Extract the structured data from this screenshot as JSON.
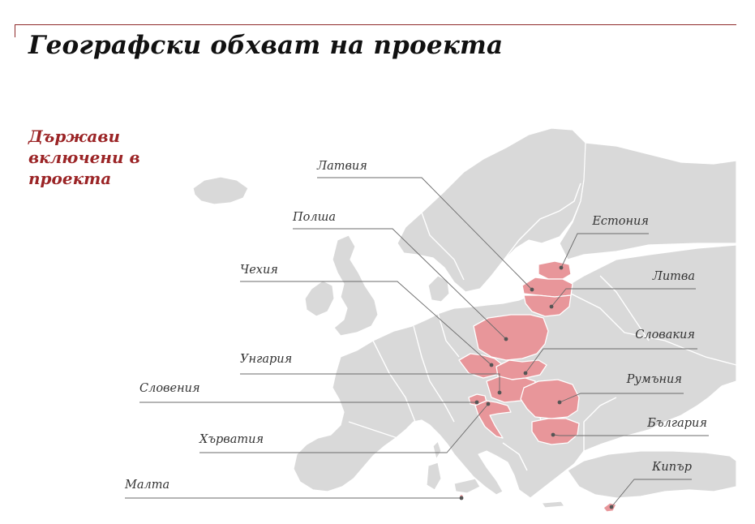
{
  "title": "Географски обхват на проекта",
  "subtitle": "Държави включени в проекта",
  "colors": {
    "included": "#e8969a",
    "other": "#d9d9d9",
    "accent": "#9b2426"
  },
  "countries": [
    {
      "id": "latvia",
      "label": "Латвия",
      "included": true
    },
    {
      "id": "poland",
      "label": "Полша",
      "included": true
    },
    {
      "id": "czechia",
      "label": "Чехия",
      "included": true
    },
    {
      "id": "hungary",
      "label": "Унгария",
      "included": true
    },
    {
      "id": "slovenia",
      "label": "Словения",
      "included": true
    },
    {
      "id": "croatia",
      "label": "Хърватия",
      "included": true
    },
    {
      "id": "malta",
      "label": "Малта",
      "included": true
    },
    {
      "id": "estonia",
      "label": "Естония",
      "included": true
    },
    {
      "id": "lithuania",
      "label": "Литва",
      "included": true
    },
    {
      "id": "slovakia",
      "label": "Словакия",
      "included": true
    },
    {
      "id": "romania",
      "label": "Румъния",
      "included": true
    },
    {
      "id": "bulgaria",
      "label": "България",
      "included": true
    },
    {
      "id": "cyprus",
      "label": "Кипър",
      "included": true
    }
  ]
}
